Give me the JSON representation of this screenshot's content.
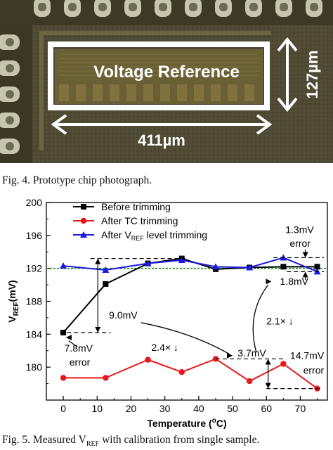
{
  "photo": {
    "block_label": "Voltage Reference",
    "width_label": "411µm",
    "height_label": "127µm",
    "colors": {
      "die": "#4f4a32",
      "pad": "#c7c5b0",
      "box": "#ffffff"
    }
  },
  "fig4_caption": "Fig. 4. Prototype chip photograph.",
  "fig5_caption_prefix": "Fig. 5. Measured V",
  "fig5_caption_sub": "REF",
  "fig5_caption_suffix": " with calibration from single sample.",
  "chart_data": {
    "type": "line",
    "xlabel_main": "Temperature (",
    "xlabel_sup": "o",
    "xlabel_end": "C)",
    "ylabel_main": "V",
    "ylabel_sub": "REF",
    "ylabel_end": "(mV)",
    "xlim": [
      -5,
      78
    ],
    "ylim": [
      176,
      200
    ],
    "xticks": [
      0,
      10,
      20,
      30,
      40,
      50,
      60,
      70
    ],
    "yticks": [
      180,
      184,
      188,
      192,
      196,
      200
    ],
    "grid": false,
    "legend_position": "top-left",
    "reference_line": {
      "y": 192,
      "color": "#1a8a1a"
    },
    "x": [
      0,
      12.5,
      25,
      35,
      45,
      55,
      65,
      75
    ],
    "series": [
      {
        "name": "Before trimming",
        "color": "#000000",
        "marker": "square",
        "values": [
          184.2,
          190.1,
          192.6,
          193.2,
          191.9,
          192.1,
          192.2,
          192.2
        ]
      },
      {
        "name": "After TC trimming",
        "color": "#e8171b",
        "marker": "circle",
        "values": [
          178.7,
          178.7,
          180.9,
          179.4,
          181.0,
          178.3,
          180.4,
          177.4
        ]
      },
      {
        "name_main": "After V",
        "name_sub": "REF",
        "name_end": " level trimming",
        "color": "#1b1be0",
        "marker": "triangle",
        "values": [
          192.3,
          191.8,
          192.6,
          193.0,
          192.2,
          192.1,
          193.3,
          191.6
        ]
      }
    ],
    "annotations": {
      "a_9mv": "9.0mV",
      "a_7_8mv": "7.8mV",
      "a_error1": "error",
      "a_2_4": "2.4× ↓",
      "a_3_7mv": "3.7mV",
      "a_14_7mv": "14.7mV",
      "a_error2": "error",
      "a_2_1": "2.1× ↓",
      "a_1_3mv": "1.3mV",
      "a_error3": "error",
      "a_1_8mv": "1.8mV"
    }
  }
}
